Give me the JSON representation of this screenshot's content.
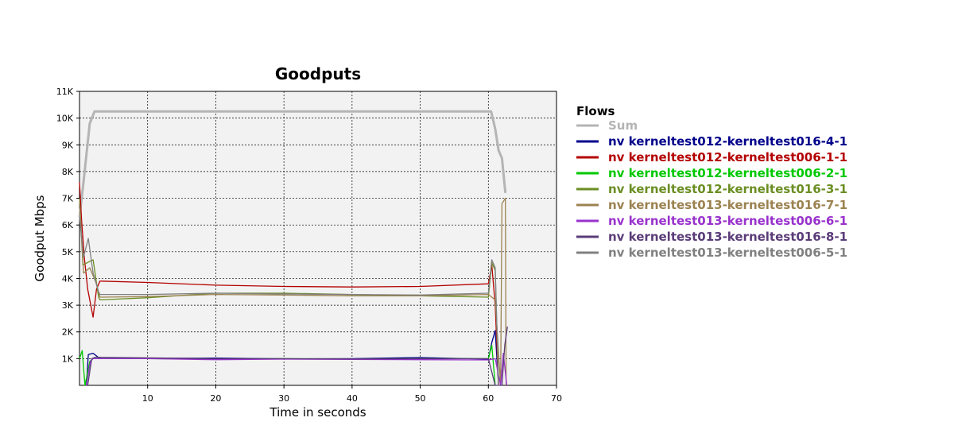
{
  "chart_data": {
    "type": "line",
    "title": "Goodputs",
    "xlabel": "Time in seconds",
    "ylabel": "Goodput Mbps",
    "xlim": [
      0,
      70
    ],
    "ylim": [
      0,
      11000
    ],
    "x_ticks": [
      10,
      20,
      30,
      40,
      50,
      60,
      70
    ],
    "x_tick_labels": [
      "10",
      "20",
      "30",
      "40",
      "50",
      "60",
      "70"
    ],
    "y_ticks": [
      1000,
      2000,
      3000,
      4000,
      5000,
      6000,
      7000,
      8000,
      9000,
      10000,
      11000
    ],
    "y_tick_labels": [
      "1K",
      "2K",
      "3K",
      "4K",
      "5K",
      "6K",
      "7K",
      "8K",
      "9K",
      "10K",
      "11K"
    ],
    "grid": true,
    "legend": {
      "title": "Flows",
      "position": "right"
    },
    "series": [
      {
        "name": "Sum",
        "color": "#b4b4b4",
        "points": [
          [
            0,
            6300
          ],
          [
            0.5,
            7400
          ],
          [
            1,
            8600
          ],
          [
            1.5,
            9800
          ],
          [
            2.2,
            10250
          ],
          [
            10,
            10250
          ],
          [
            20,
            10250
          ],
          [
            30,
            10250
          ],
          [
            40,
            10250
          ],
          [
            50,
            10250
          ],
          [
            60.4,
            10250
          ],
          [
            61,
            9600
          ],
          [
            61.5,
            8800
          ],
          [
            62,
            8500
          ],
          [
            62.5,
            7200
          ]
        ]
      },
      {
        "name": "nv kerneltest012-kerneltest016-4-1",
        "color": "#00008b",
        "points": [
          [
            1,
            0
          ],
          [
            1.3,
            1150
          ],
          [
            2,
            1200
          ],
          [
            3,
            1000
          ],
          [
            10,
            1010
          ],
          [
            20,
            1020
          ],
          [
            30,
            990
          ],
          [
            40,
            1000
          ],
          [
            50,
            1040
          ],
          [
            60,
            980
          ],
          [
            60.5,
            1600
          ],
          [
            61,
            2050
          ],
          [
            61.5,
            0
          ]
        ]
      },
      {
        "name": "nv kerneltest012-kerneltest006-1-1",
        "color": "#b40000",
        "points": [
          [
            0,
            7600
          ],
          [
            0.3,
            6200
          ],
          [
            0.7,
            4800
          ],
          [
            1.2,
            3600
          ],
          [
            2,
            2550
          ],
          [
            2.5,
            3600
          ],
          [
            3,
            3900
          ],
          [
            10,
            3850
          ],
          [
            20,
            3750
          ],
          [
            30,
            3700
          ],
          [
            40,
            3680
          ],
          [
            50,
            3700
          ],
          [
            60,
            3800
          ],
          [
            60.5,
            4500
          ],
          [
            61,
            3000
          ],
          [
            61.5,
            0
          ]
        ]
      },
      {
        "name": "nv kerneltest012-kerneltest006-2-1",
        "color": "#00c800",
        "points": [
          [
            0,
            1000
          ],
          [
            0.4,
            1300
          ],
          [
            0.8,
            0
          ],
          [
            1.5,
            900
          ],
          [
            2,
            1000
          ],
          [
            10,
            1000
          ],
          [
            20,
            980
          ],
          [
            30,
            1000
          ],
          [
            40,
            990
          ],
          [
            50,
            1000
          ],
          [
            60,
            1000
          ],
          [
            60.5,
            1500
          ],
          [
            61,
            0
          ]
        ]
      },
      {
        "name": "nv kerneltest012-kerneltest016-3-1",
        "color": "#6b8e23",
        "points": [
          [
            0,
            7000
          ],
          [
            0.5,
            4500
          ],
          [
            1.2,
            4600
          ],
          [
            2,
            4700
          ],
          [
            2.8,
            3300
          ],
          [
            3,
            3200
          ],
          [
            10,
            3280
          ],
          [
            20,
            3450
          ],
          [
            30,
            3450
          ],
          [
            40,
            3400
          ],
          [
            50,
            3350
          ],
          [
            60,
            3300
          ],
          [
            60.5,
            4600
          ],
          [
            61,
            4300
          ],
          [
            61.5,
            0
          ]
        ]
      },
      {
        "name": "nv kerneltest013-kerneltest016-7-1",
        "color": "#9c8250",
        "points": [
          [
            0,
            7000
          ],
          [
            0.6,
            4200
          ],
          [
            1.5,
            4400
          ],
          [
            2.5,
            3800
          ],
          [
            3,
            3300
          ],
          [
            10,
            3320
          ],
          [
            20,
            3400
          ],
          [
            30,
            3380
          ],
          [
            40,
            3350
          ],
          [
            50,
            3350
          ],
          [
            60,
            3400
          ],
          [
            61,
            3200
          ],
          [
            61.8,
            0
          ],
          [
            62,
            6800
          ],
          [
            62.5,
            7000
          ],
          [
            62.6,
            0
          ]
        ]
      },
      {
        "name": "nv kerneltest013-kerneltest006-6-1",
        "color": "#9932cc",
        "points": [
          [
            1,
            0
          ],
          [
            1.6,
            900
          ],
          [
            2,
            1000
          ],
          [
            10,
            1000
          ],
          [
            20,
            960
          ],
          [
            30,
            980
          ],
          [
            40,
            970
          ],
          [
            50,
            960
          ],
          [
            60,
            950
          ],
          [
            61,
            1000
          ],
          [
            61.8,
            0
          ],
          [
            62.2,
            1200
          ],
          [
            62.7,
            0
          ]
        ]
      },
      {
        "name": "nv kerneltest013-kerneltest016-8-1",
        "color": "#5a3c78",
        "points": [
          [
            1.2,
            0
          ],
          [
            1.8,
            1000
          ],
          [
            2.3,
            1050
          ],
          [
            10,
            1030
          ],
          [
            20,
            1000
          ],
          [
            30,
            1000
          ],
          [
            40,
            990
          ],
          [
            50,
            1000
          ],
          [
            60,
            1000
          ],
          [
            61,
            0
          ],
          [
            62,
            0
          ],
          [
            62.4,
            1500
          ],
          [
            62.8,
            2200
          ]
        ]
      },
      {
        "name": "nv kerneltest013-kerneltest006-5-1",
        "color": "#808080",
        "points": [
          [
            0,
            6300
          ],
          [
            0.6,
            4800
          ],
          [
            1.3,
            5500
          ],
          [
            2,
            4200
          ],
          [
            2.8,
            3500
          ],
          [
            3,
            3400
          ],
          [
            10,
            3400
          ],
          [
            20,
            3450
          ],
          [
            30,
            3420
          ],
          [
            40,
            3400
          ],
          [
            50,
            3380
          ],
          [
            60,
            3450
          ],
          [
            60.5,
            4700
          ],
          [
            61,
            4400
          ],
          [
            61.5,
            0
          ]
        ]
      }
    ]
  }
}
